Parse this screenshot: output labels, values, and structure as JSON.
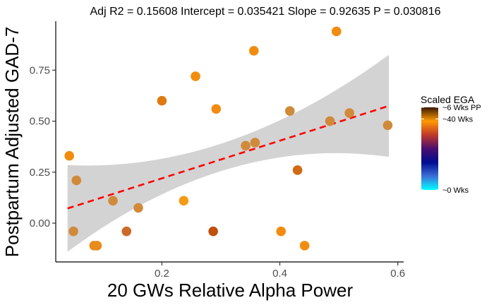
{
  "chart_data": {
    "type": "scatter",
    "title": "Adj R2 =  0.15608 Intercept = 0.035421  Slope = 0.92635  P = 0.030816",
    "xlabel": "20 GWs Relative Alpha Power",
    "ylabel": "Postpartum Adjusted GAD-7",
    "xlim": [
      0.02,
      0.61
    ],
    "ylim": [
      -0.19,
      0.99
    ],
    "x_ticks": [
      {
        "value": 0.2,
        "label": "0.2"
      },
      {
        "value": 0.4,
        "label": "0.4"
      },
      {
        "value": 0.6,
        "label": "0.6"
      }
    ],
    "y_ticks": [
      {
        "value": 0.0,
        "label": "0.00"
      },
      {
        "value": 0.25,
        "label": "0.25"
      },
      {
        "value": 0.5,
        "label": "0.50"
      },
      {
        "value": 0.75,
        "label": "0.75"
      }
    ],
    "grid": false,
    "legend": {
      "title": "Scaled EGA",
      "placement": "right",
      "labels": [
        {
          "text": "~6 Wks PP",
          "stop": 1.0
        },
        {
          "text": "~40 Wks",
          "stop": 0.86
        },
        {
          "text": "~0 Wks",
          "stop": 0.0
        }
      ],
      "gradient": [
        "#00ffff",
        "#3b6fd8",
        "#000c8f",
        "#4b0f6e",
        "#c0392b",
        "#ff9900",
        "#3a1a00"
      ]
    },
    "regression": {
      "x_range": [
        0.04,
        0.585
      ],
      "fit": [
        0.072,
        0.575
      ],
      "ci_lower": [
        -0.14,
        0.325
      ],
      "ci_upper": [
        0.285,
        0.825
      ],
      "ci_mid_x": 0.31,
      "ci_mid_lower": [
        0.265
      ],
      "ci_mid_upper": [
        0.4
      ],
      "line_color": "#ff0000",
      "band_color": "#d3d3d3"
    },
    "series": [
      {
        "points": [
          {
            "x": 0.043,
            "y": 0.33,
            "color": "#f28c0f"
          },
          {
            "x": 0.055,
            "y": 0.21,
            "color": "#d08a3a"
          },
          {
            "x": 0.05,
            "y": -0.04,
            "color": "#d08a3a"
          },
          {
            "x": 0.085,
            "y": -0.11,
            "color": "#e88c1c"
          },
          {
            "x": 0.09,
            "y": -0.11,
            "color": "#e88c1c"
          },
          {
            "x": 0.117,
            "y": 0.11,
            "color": "#d08a3a"
          },
          {
            "x": 0.14,
            "y": -0.04,
            "color": "#cc6a2a"
          },
          {
            "x": 0.16,
            "y": 0.075,
            "color": "#d08a3a"
          },
          {
            "x": 0.2,
            "y": 0.6,
            "color": "#e07a10"
          },
          {
            "x": 0.237,
            "y": 0.11,
            "color": "#f59a12"
          },
          {
            "x": 0.257,
            "y": 0.72,
            "color": "#f28c0f"
          },
          {
            "x": 0.287,
            "y": -0.04,
            "color": "#c0500e"
          },
          {
            "x": 0.292,
            "y": 0.56,
            "color": "#f28c0f"
          },
          {
            "x": 0.342,
            "y": 0.38,
            "color": "#d08a3a"
          },
          {
            "x": 0.356,
            "y": 0.845,
            "color": "#f28c0f"
          },
          {
            "x": 0.358,
            "y": 0.395,
            "color": "#d08a3a"
          },
          {
            "x": 0.402,
            "y": -0.04,
            "color": "#f28c0f"
          },
          {
            "x": 0.417,
            "y": 0.55,
            "color": "#d08a3a"
          },
          {
            "x": 0.43,
            "y": 0.26,
            "color": "#d06a15"
          },
          {
            "x": 0.442,
            "y": -0.11,
            "color": "#f28c0f"
          },
          {
            "x": 0.485,
            "y": 0.5,
            "color": "#d08a3a"
          },
          {
            "x": 0.496,
            "y": 0.94,
            "color": "#f28c0f"
          },
          {
            "x": 0.518,
            "y": 0.54,
            "color": "#d08a3a"
          },
          {
            "x": 0.583,
            "y": 0.48,
            "color": "#d08a3a"
          }
        ]
      }
    ]
  }
}
